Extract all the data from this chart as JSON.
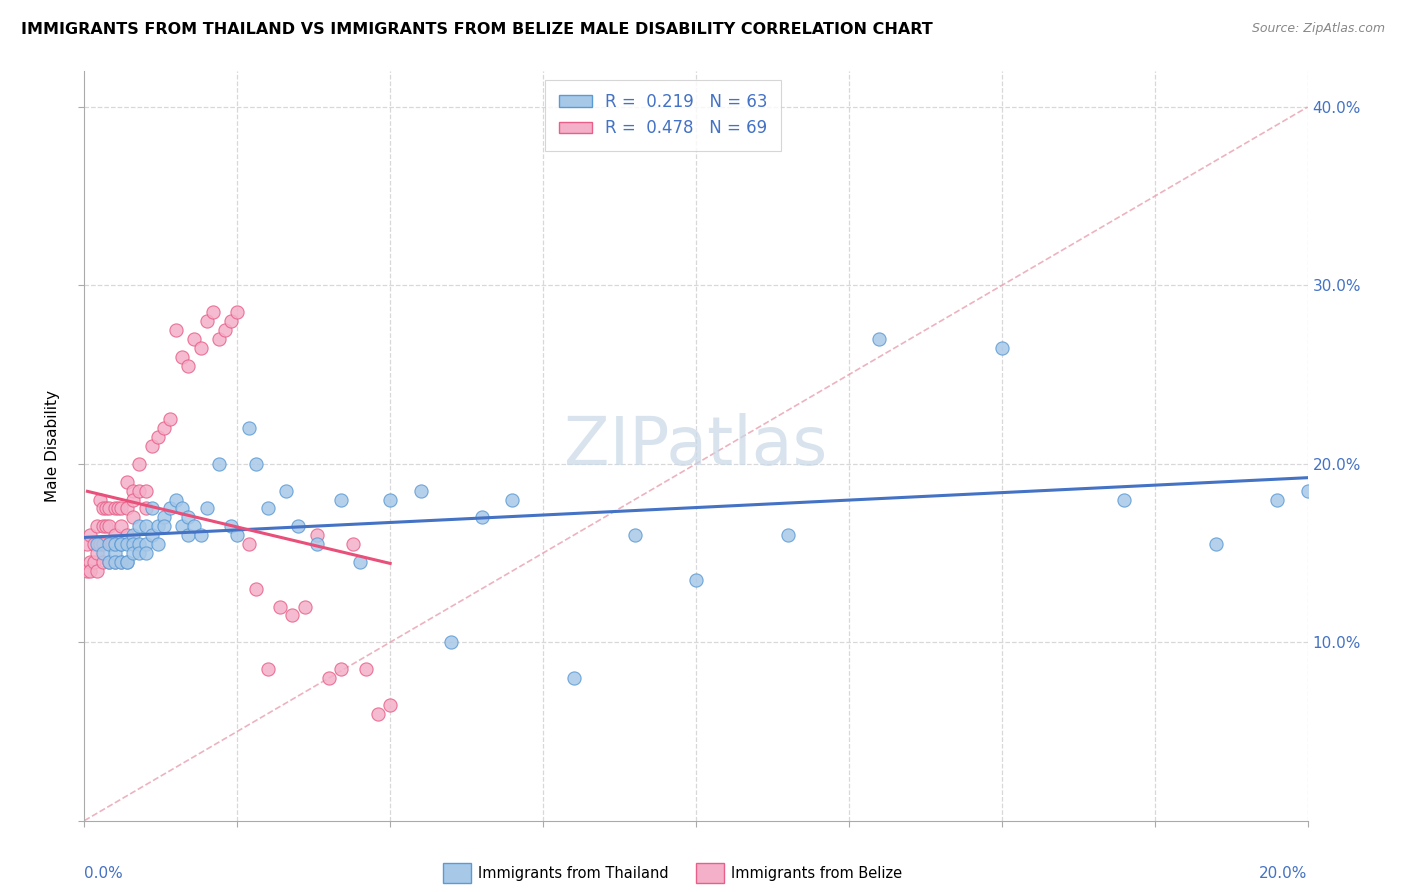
{
  "title": "IMMIGRANTS FROM THAILAND VS IMMIGRANTS FROM BELIZE MALE DISABILITY CORRELATION CHART",
  "source": "Source: ZipAtlas.com",
  "ylabel": "Male Disability",
  "xlim": [
    0.0,
    0.2
  ],
  "ylim": [
    0.0,
    0.42
  ],
  "yticks": [
    0.0,
    0.1,
    0.2,
    0.3,
    0.4
  ],
  "yticklabels": [
    "",
    "10.0%",
    "20.0%",
    "30.0%",
    "40.0%"
  ],
  "xtick_left_label": "0.0%",
  "xtick_right_label": "20.0%",
  "R_thailand": 0.219,
  "N_thailand": 63,
  "R_belize": 0.478,
  "N_belize": 69,
  "color_thailand": "#a8c8e8",
  "color_belize": "#f4b0c8",
  "edge_thailand": "#5b9bd5",
  "edge_belize": "#e8608a",
  "line_thailand": "#4472c4",
  "line_belize": "#e8507a",
  "diagonal_color": "#e8a0b0",
  "background_color": "#ffffff",
  "grid_color": "#d8d8d8",
  "axis_text_color": "#4472c4",
  "watermark_color": "#c8d8e8",
  "thailand_x": [
    0.002,
    0.003,
    0.004,
    0.004,
    0.005,
    0.005,
    0.005,
    0.006,
    0.006,
    0.006,
    0.007,
    0.007,
    0.007,
    0.008,
    0.008,
    0.008,
    0.009,
    0.009,
    0.009,
    0.01,
    0.01,
    0.01,
    0.011,
    0.011,
    0.012,
    0.012,
    0.013,
    0.013,
    0.014,
    0.015,
    0.016,
    0.016,
    0.017,
    0.017,
    0.018,
    0.019,
    0.02,
    0.022,
    0.024,
    0.025,
    0.027,
    0.028,
    0.03,
    0.033,
    0.035,
    0.038,
    0.042,
    0.045,
    0.05,
    0.055,
    0.06,
    0.065,
    0.07,
    0.08,
    0.09,
    0.1,
    0.115,
    0.13,
    0.15,
    0.17,
    0.185,
    0.195,
    0.2
  ],
  "thailand_y": [
    0.155,
    0.15,
    0.155,
    0.145,
    0.15,
    0.155,
    0.145,
    0.155,
    0.145,
    0.155,
    0.155,
    0.145,
    0.145,
    0.16,
    0.155,
    0.15,
    0.165,
    0.155,
    0.15,
    0.165,
    0.155,
    0.15,
    0.175,
    0.16,
    0.165,
    0.155,
    0.17,
    0.165,
    0.175,
    0.18,
    0.175,
    0.165,
    0.17,
    0.16,
    0.165,
    0.16,
    0.175,
    0.2,
    0.165,
    0.16,
    0.22,
    0.2,
    0.175,
    0.185,
    0.165,
    0.155,
    0.18,
    0.145,
    0.18,
    0.185,
    0.1,
    0.17,
    0.18,
    0.08,
    0.16,
    0.135,
    0.16,
    0.27,
    0.265,
    0.18,
    0.155,
    0.18,
    0.185
  ],
  "belize_x": [
    0.0005,
    0.0005,
    0.001,
    0.001,
    0.001,
    0.0015,
    0.0015,
    0.002,
    0.002,
    0.002,
    0.0025,
    0.0025,
    0.003,
    0.003,
    0.003,
    0.003,
    0.0035,
    0.0035,
    0.004,
    0.004,
    0.004,
    0.004,
    0.0045,
    0.005,
    0.005,
    0.005,
    0.005,
    0.0055,
    0.006,
    0.006,
    0.006,
    0.007,
    0.007,
    0.007,
    0.008,
    0.008,
    0.008,
    0.009,
    0.009,
    0.01,
    0.01,
    0.011,
    0.012,
    0.013,
    0.014,
    0.015,
    0.016,
    0.017,
    0.018,
    0.019,
    0.02,
    0.021,
    0.022,
    0.023,
    0.024,
    0.025,
    0.027,
    0.028,
    0.03,
    0.032,
    0.034,
    0.036,
    0.038,
    0.04,
    0.042,
    0.044,
    0.046,
    0.048,
    0.05
  ],
  "belize_y": [
    0.155,
    0.14,
    0.16,
    0.145,
    0.14,
    0.155,
    0.145,
    0.165,
    0.15,
    0.14,
    0.18,
    0.155,
    0.175,
    0.165,
    0.155,
    0.145,
    0.175,
    0.165,
    0.175,
    0.165,
    0.155,
    0.145,
    0.155,
    0.16,
    0.175,
    0.155,
    0.145,
    0.175,
    0.175,
    0.165,
    0.145,
    0.19,
    0.175,
    0.16,
    0.185,
    0.18,
    0.17,
    0.2,
    0.185,
    0.185,
    0.175,
    0.21,
    0.215,
    0.22,
    0.225,
    0.275,
    0.26,
    0.255,
    0.27,
    0.265,
    0.28,
    0.285,
    0.27,
    0.275,
    0.28,
    0.285,
    0.155,
    0.13,
    0.085,
    0.12,
    0.115,
    0.12,
    0.16,
    0.08,
    0.085,
    0.155,
    0.085,
    0.06,
    0.065
  ]
}
